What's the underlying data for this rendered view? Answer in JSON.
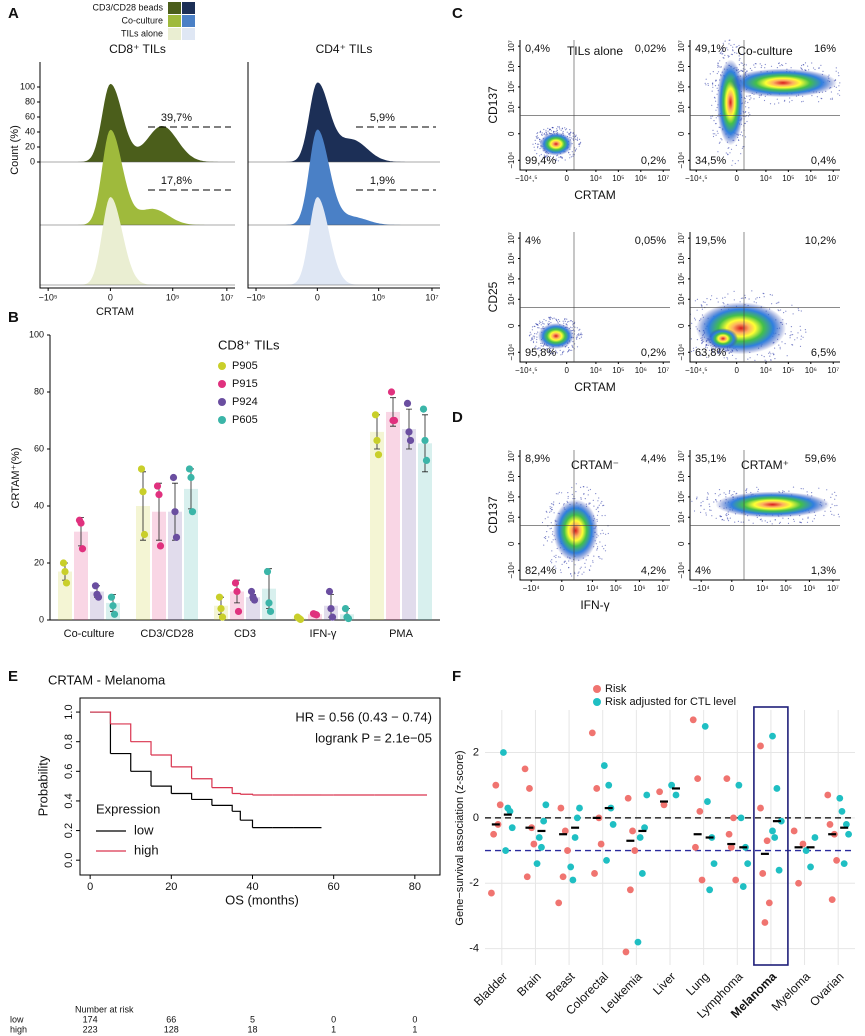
{
  "chart_data": [
    {
      "type": "flow-histogram",
      "panel": "A",
      "legend": [
        "CD3/CD28 beads",
        "Co-culture",
        "TILs alone"
      ],
      "ylabel": "Count (%)",
      "xlabel": "CRTAM",
      "ylim": [
        0,
        100
      ],
      "yticks": [
        0,
        20,
        40,
        60,
        80,
        100
      ],
      "xlim": [
        -200000,
        20000000
      ],
      "xticks": [
        {
          "value": -100000,
          "label": "−10⁵"
        },
        {
          "value": 0,
          "label": "0"
        },
        {
          "value": 100000,
          "label": "10⁵"
        },
        {
          "value": 10000000,
          "label": "10⁷"
        }
      ],
      "plots": [
        {
          "title": "CD8⁺ TILs",
          "colors": [
            "#4b5e1b",
            "#9fba3c",
            "#eaeed2"
          ],
          "annotations": [
            "39,7%",
            "17,8%"
          ]
        },
        {
          "title": "CD4⁺ TILs",
          "colors": [
            "#1c2f56",
            "#4a80c6",
            "#dfe7f4"
          ],
          "annotations": [
            "5,9%",
            "1,9%"
          ]
        }
      ]
    },
    {
      "type": "bar",
      "panel": "B",
      "ylabel": "CRTAM⁺(%)",
      "legend_title": "CD8⁺ TILs",
      "categories": [
        "Co-culture",
        "CD3/CD28",
        "CD3",
        "IFN-γ",
        "PMA"
      ],
      "ylim": [
        0,
        100
      ],
      "yticks": [
        0,
        20,
        40,
        60,
        80,
        100
      ],
      "series": [
        {
          "name": "P905",
          "color": "#c9cf2a",
          "values": [
            17,
            40,
            5,
            0.6,
            66
          ],
          "errors": [
            3,
            12,
            3,
            0.4,
            6
          ],
          "points": [
            [
              20,
              17,
              13
            ],
            [
              53,
              45,
              30
            ],
            [
              8,
              4,
              1
            ],
            [
              1,
              0.6,
              0.2
            ],
            [
              72,
              63,
              58
            ]
          ]
        },
        {
          "name": "P915",
          "color": "#e0317e",
          "values": [
            31,
            38,
            10,
            2,
            73
          ],
          "errors": [
            5,
            10,
            4,
            0.3,
            5
          ],
          "points": [
            [
              35,
              34,
              25
            ],
            [
              47,
              44,
              26
            ],
            [
              13,
              10,
              3
            ],
            [
              2.2,
              2,
              1.8
            ],
            [
              80,
              70,
              70
            ]
          ]
        },
        {
          "name": "P924",
          "color": "#6a4ea0",
          "values": [
            10,
            38,
            8,
            5,
            67
          ],
          "errors": [
            2,
            10,
            1,
            4,
            7
          ],
          "points": [
            [
              12,
              9,
              8
            ],
            [
              50,
              38,
              29
            ],
            [
              10,
              8,
              7
            ],
            [
              10,
              4,
              1
            ],
            [
              76,
              66,
              63
            ]
          ]
        },
        {
          "name": "P605",
          "color": "#3bb5a8",
          "values": [
            6,
            46,
            11,
            2,
            62
          ],
          "errors": [
            3,
            7,
            7,
            2,
            10
          ],
          "points": [
            [
              8,
              5,
              2
            ],
            [
              53,
              50,
              38
            ],
            [
              17,
              6,
              3
            ],
            [
              4,
              1,
              0.5
            ],
            [
              74,
              63,
              56
            ]
          ]
        }
      ]
    },
    {
      "type": "flow-density",
      "panel": "C",
      "columns": [
        "TILs alone",
        "Co-culture"
      ],
      "xlabel": "CRTAM",
      "xlim": [
        -60000,
        20000000
      ],
      "ylim": [
        -30000,
        20000000
      ],
      "xticks": [
        {
          "value": -31623,
          "label": "−10⁴,⁵"
        },
        {
          "value": 0,
          "label": "0"
        },
        {
          "value": 10000,
          "label": "10⁴"
        },
        {
          "value": 100000,
          "label": "10⁵"
        },
        {
          "value": 1000000,
          "label": "10⁶"
        },
        {
          "value": 10000000,
          "label": "10⁷"
        }
      ],
      "yticks": [
        {
          "value": -10000,
          "label": "−10⁴"
        },
        {
          "value": 0,
          "label": "0"
        },
        {
          "value": 10000,
          "label": "10⁴"
        },
        {
          "value": 100000,
          "label": "10⁵"
        },
        {
          "value": 1000000,
          "label": "10⁶"
        },
        {
          "value": 10000000,
          "label": "10⁷"
        }
      ],
      "rows": [
        {
          "ylabel": "CD137",
          "quadrants": [
            [
              "0,4%",
              "0,02%",
              "99,4%",
              "0,2%"
            ],
            [
              "49,1%",
              "16%",
              "34,5%",
              "0,4%"
            ]
          ]
        },
        {
          "ylabel": "CD25",
          "quadrants": [
            [
              "4%",
              "0,05%",
              "95,8%",
              "0,2%"
            ],
            [
              "19,5%",
              "10,2%",
              "63,8%",
              "6,5%"
            ]
          ]
        }
      ]
    },
    {
      "type": "flow-density",
      "panel": "D",
      "columns": [
        "CRTAM⁻",
        "CRTAM⁺"
      ],
      "xlabel": "IFN-γ",
      "xlim": [
        -30000,
        20000000
      ],
      "ylim": [
        -30000,
        20000000
      ],
      "xticks": [
        {
          "value": -10000,
          "label": "−10⁴"
        },
        {
          "value": 0,
          "label": "0"
        },
        {
          "value": 10000,
          "label": "10⁴"
        },
        {
          "value": 100000,
          "label": "10⁵"
        },
        {
          "value": 1000000,
          "label": "10⁶"
        },
        {
          "value": 10000000,
          "label": "10⁷"
        }
      ],
      "yticks": [
        {
          "value": -10000,
          "label": "−10⁴"
        },
        {
          "value": 0,
          "label": "0"
        },
        {
          "value": 10000,
          "label": "10⁴"
        },
        {
          "value": 100000,
          "label": "10⁵"
        },
        {
          "value": 1000000,
          "label": "10⁶"
        },
        {
          "value": 10000000,
          "label": "10⁷"
        }
      ],
      "rows": [
        {
          "ylabel": "CD137",
          "quadrants": [
            [
              "8,9%",
              "4,4%",
              "82,4%",
              "4,2%"
            ],
            [
              "35,1%",
              "59,6%",
              "4%",
              "1,3%"
            ]
          ]
        }
      ]
    },
    {
      "type": "line",
      "panel": "E",
      "title": "CRTAM - Melanoma",
      "xlabel": "OS (months)",
      "ylabel": "Probability",
      "annotations": [
        "HR = 0.56 (0.43 − 0.74)",
        "logrank P = 2.1e−05"
      ],
      "legend_title": "Expression",
      "x": [
        0,
        5,
        10,
        15,
        20,
        25,
        30,
        35,
        37,
        40,
        45,
        50,
        57,
        60,
        70,
        83
      ],
      "series": [
        {
          "name": "low",
          "color": "#000000",
          "values": [
            1.0,
            0.72,
            0.6,
            0.5,
            0.45,
            0.41,
            0.37,
            0.33,
            0.27,
            0.22,
            0.22,
            0.22,
            0.22,
            null,
            null,
            null
          ]
        },
        {
          "name": "high",
          "color": "#d9344f",
          "values": [
            1.0,
            0.92,
            0.8,
            0.71,
            0.63,
            0.55,
            0.49,
            0.45,
            0.445,
            0.44,
            0.44,
            0.44,
            0.44,
            0.44,
            0.44,
            0.44
          ]
        }
      ],
      "xlim": [
        -2.5,
        86.2
      ],
      "xticks": [
        0,
        20,
        40,
        60,
        80
      ],
      "ylim": [
        -0.1,
        1.095
      ],
      "yticks": [
        {
          "value": 0,
          "label": "0.0"
        },
        0.2,
        0.4,
        0.6,
        0.8,
        {
          "value": 1,
          "label": "1.0"
        }
      ],
      "risk_table": {
        "title": "Number at risk",
        "rows": [
          {
            "name": "low",
            "values": [
              174,
              66,
              5,
              0,
              0
            ]
          },
          {
            "name": "high",
            "values": [
              223,
              128,
              18,
              1,
              1
            ]
          }
        ]
      }
    },
    {
      "type": "strip",
      "panel": "F",
      "ylabel": "Gene−survival association (z-score)",
      "categories": [
        "Bladder",
        "Brain",
        "Breast",
        "Colorectal",
        "Leukemia",
        "Liver",
        "Lung",
        "Lymphoma",
        "Melanoma",
        "Myeloma",
        "Ovarian"
      ],
      "highlight": 8,
      "ylim": [
        -4.5,
        3.3
      ],
      "yticks": [
        -4,
        -2,
        0,
        2
      ],
      "hlines": [
        {
          "value": 0,
          "color": "#000000"
        },
        {
          "value": -1,
          "color": "#2b2b9e"
        }
      ],
      "series": [
        {
          "name": "Risk",
          "color": "#f07470",
          "values": [
            -0.2,
            -0.3,
            -0.5,
            0.0,
            -0.7,
            0.5,
            -0.5,
            -0.8,
            -1.1,
            -0.9,
            -0.5
          ],
          "points": [
            [
              -2.3,
              1.0,
              0.4,
              -0.5,
              -0.2
            ],
            [
              1.5,
              0.9,
              -0.8,
              -1.8,
              -0.3
            ],
            [
              -2.6,
              -1.8,
              -1.0,
              0.3,
              -0.4
            ],
            [
              2.6,
              0.9,
              -0.8,
              -1.7,
              0.0
            ],
            [
              -4.1,
              -2.2,
              -1.0,
              0.6,
              -0.4
            ],
            [
              0.8,
              0.4
            ],
            [
              3.0,
              1.2,
              -1.9,
              -0.9,
              0.2
            ],
            [
              1.2,
              -0.9,
              -1.9,
              -0.5,
              0.0
            ],
            [
              2.2,
              -3.2,
              -2.6,
              -1.7,
              -0.7,
              0.3
            ],
            [
              -0.4,
              -2.0,
              -0.8
            ],
            [
              0.7,
              -2.5,
              -1.3,
              -0.2,
              -0.5
            ]
          ]
        },
        {
          "name": "Risk adjusted for CTL level",
          "color": "#1fbfc3",
          "values": [
            0.1,
            -0.4,
            -0.3,
            0.3,
            -0.4,
            0.9,
            -0.6,
            -0.9,
            -0.1,
            -0.9,
            -0.3
          ],
          "points": [
            [
              2.0,
              0.3,
              -0.3,
              -1.0,
              0.2
            ],
            [
              -1.4,
              -0.9,
              0.4,
              -0.6,
              -0.1
            ],
            [
              -1.5,
              -0.6,
              0.3,
              -1.9,
              0.0
            ],
            [
              1.6,
              1.0,
              -0.2,
              -1.3,
              0.3
            ],
            [
              -3.8,
              -1.7,
              0.7,
              -0.6,
              -0.3
            ],
            [
              1.0,
              0.7
            ],
            [
              2.8,
              -2.2,
              -1.4,
              0.5,
              -0.6
            ],
            [
              1.0,
              -2.1,
              -1.4,
              0.0,
              -0.9
            ],
            [
              2.5,
              0.9,
              -0.1,
              -0.6,
              -1.6,
              -0.4
            ],
            [
              -1.0,
              -1.5,
              -0.6
            ],
            [
              0.6,
              -1.4,
              -0.5,
              0.2,
              -0.2
            ]
          ]
        }
      ]
    }
  ]
}
